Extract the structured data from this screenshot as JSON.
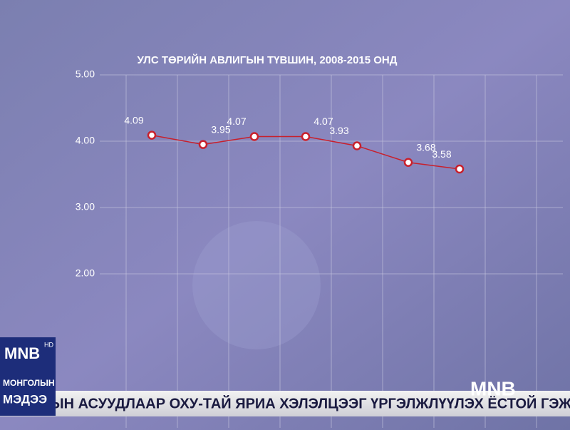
{
  "chart_data": {
    "type": "line",
    "title": "УЛС ТӨРИЙН АВЛИГЫН ТҮВШИН, 2008-2015 ОНД",
    "categories": [
      null,
      null,
      null,
      null,
      null,
      null,
      null
    ],
    "series": [
      {
        "name": null,
        "color": "#c8202c",
        "values": [
          4.09,
          3.95,
          4.07,
          4.07,
          3.93,
          3.68,
          3.58
        ]
      }
    ],
    "ylim": [
      1,
      5
    ],
    "yticks": [
      {
        "value": 2,
        "label": "2.00"
      },
      {
        "value": 3,
        "label": "3.00"
      },
      {
        "value": 4,
        "label": "4.00"
      },
      {
        "value": 5,
        "label": "5.00"
      }
    ],
    "grid": true
  },
  "broadcast": {
    "logo": "MNB",
    "hd": "HD",
    "channel_line1": "МОНГОЛЫН",
    "channel_line2": "МЭДЭЭ",
    "ticker": "ЫН АСУУДЛААР ОХУ-ТАЙ ЯРИА ХЭЛЭЛЦЭЭГ ҮРГЭЛЖЛҮҮЛЭХ ЁСТОЙ ГЭЖ БОРИС",
    "corner_logo": "MNB"
  }
}
